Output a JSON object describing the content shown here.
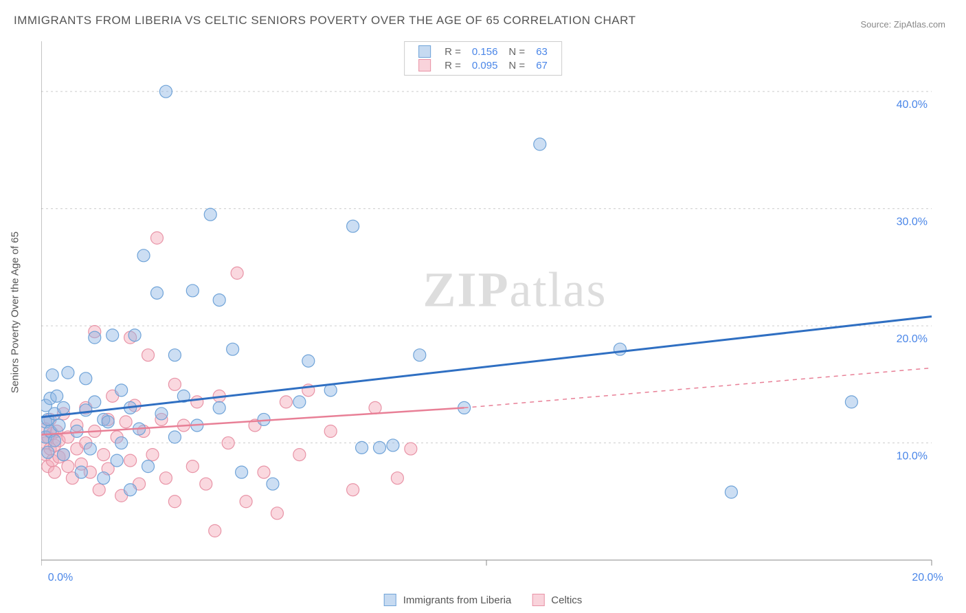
{
  "title": "IMMIGRANTS FROM LIBERIA VS CELTIC SENIORS POVERTY OVER THE AGE OF 65 CORRELATION CHART",
  "source": "Source: ZipAtlas.com",
  "ylabel": "Seniors Poverty Over the Age of 65",
  "watermark": {
    "bold": "ZIP",
    "rest": "atlas"
  },
  "chart": {
    "type": "scatter",
    "xlim": [
      0,
      20
    ],
    "ylim": [
      0,
      44
    ],
    "x_ticks": [
      0,
      10,
      20
    ],
    "x_tick_labels": [
      "0.0%",
      "",
      "20.0%"
    ],
    "y_gridlines": [
      10,
      20,
      30,
      40
    ],
    "y_tick_labels": [
      "10.0%",
      "20.0%",
      "30.0%",
      "40.0%"
    ],
    "background_color": "#ffffff",
    "grid_color": "#cccccc",
    "axis_color": "#888888",
    "tick_label_color": "#4a86e8",
    "marker_radius": 9,
    "marker_stroke_width": 1.2,
    "series": [
      {
        "name": "Immigrants from Liberia",
        "fill": "rgba(141,182,228,0.45)",
        "stroke": "#6fa3d8",
        "line_color": "#2f6fc2",
        "line_width": 3,
        "trend_line": {
          "x1": 0,
          "y1": 12.2,
          "x2": 20,
          "y2": 20.8
        },
        "R": "0.156",
        "N": "63",
        "points": [
          [
            0.1,
            10.5
          ],
          [
            0.1,
            11.8
          ],
          [
            0.1,
            13.2
          ],
          [
            0.15,
            9.2
          ],
          [
            0.15,
            12.0
          ],
          [
            0.2,
            13.8
          ],
          [
            0.2,
            11.0
          ],
          [
            0.25,
            15.8
          ],
          [
            0.3,
            10.2
          ],
          [
            0.3,
            12.5
          ],
          [
            0.35,
            14.0
          ],
          [
            0.4,
            11.5
          ],
          [
            0.5,
            9.0
          ],
          [
            0.5,
            13.0
          ],
          [
            0.6,
            16.0
          ],
          [
            0.8,
            11.0
          ],
          [
            0.9,
            7.5
          ],
          [
            1.0,
            15.5
          ],
          [
            1.0,
            12.8
          ],
          [
            1.1,
            9.5
          ],
          [
            1.2,
            19.0
          ],
          [
            1.2,
            13.5
          ],
          [
            1.4,
            12.0
          ],
          [
            1.4,
            7.0
          ],
          [
            1.5,
            11.8
          ],
          [
            1.6,
            19.2
          ],
          [
            1.7,
            8.5
          ],
          [
            1.8,
            10.0
          ],
          [
            1.8,
            14.5
          ],
          [
            2.0,
            13.0
          ],
          [
            2.0,
            6.0
          ],
          [
            2.1,
            19.2
          ],
          [
            2.2,
            11.2
          ],
          [
            2.3,
            26.0
          ],
          [
            2.4,
            8.0
          ],
          [
            2.6,
            22.8
          ],
          [
            2.7,
            12.5
          ],
          [
            2.8,
            40.0
          ],
          [
            3.0,
            17.5
          ],
          [
            3.0,
            10.5
          ],
          [
            3.2,
            14.0
          ],
          [
            3.4,
            23.0
          ],
          [
            3.5,
            11.5
          ],
          [
            3.8,
            29.5
          ],
          [
            4.0,
            13.0
          ],
          [
            4.0,
            22.2
          ],
          [
            4.3,
            18.0
          ],
          [
            4.5,
            7.5
          ],
          [
            5.0,
            12.0
          ],
          [
            5.2,
            6.5
          ],
          [
            5.8,
            13.5
          ],
          [
            6.0,
            17.0
          ],
          [
            6.5,
            14.5
          ],
          [
            7.0,
            28.5
          ],
          [
            7.2,
            9.6
          ],
          [
            7.6,
            9.6
          ],
          [
            7.9,
            9.8
          ],
          [
            8.5,
            17.5
          ],
          [
            9.5,
            13.0
          ],
          [
            11.2,
            35.5
          ],
          [
            13.0,
            18.0
          ],
          [
            15.5,
            5.8
          ],
          [
            18.2,
            13.5
          ]
        ]
      },
      {
        "name": "Celtics",
        "fill": "rgba(244,168,184,0.45)",
        "stroke": "#e893a6",
        "line_color": "#e87f96",
        "line_width": 2.5,
        "trend_line": {
          "x1": 0,
          "y1": 10.7,
          "x2": 9.5,
          "y2": 13.0
        },
        "trend_dash": {
          "x1": 9.5,
          "y1": 13.0,
          "x2": 20,
          "y2": 16.4
        },
        "R": "0.095",
        "N": "67",
        "points": [
          [
            0.1,
            9.0
          ],
          [
            0.1,
            10.0
          ],
          [
            0.1,
            11.2
          ],
          [
            0.15,
            8.0
          ],
          [
            0.15,
            10.5
          ],
          [
            0.2,
            9.5
          ],
          [
            0.2,
            12.0
          ],
          [
            0.25,
            8.5
          ],
          [
            0.25,
            10.8
          ],
          [
            0.3,
            9.8
          ],
          [
            0.3,
            7.5
          ],
          [
            0.35,
            11.0
          ],
          [
            0.4,
            8.8
          ],
          [
            0.4,
            10.2
          ],
          [
            0.5,
            9.0
          ],
          [
            0.5,
            12.5
          ],
          [
            0.6,
            8.0
          ],
          [
            0.6,
            10.5
          ],
          [
            0.7,
            7.0
          ],
          [
            0.8,
            9.5
          ],
          [
            0.8,
            11.5
          ],
          [
            0.9,
            8.2
          ],
          [
            1.0,
            10.0
          ],
          [
            1.0,
            13.0
          ],
          [
            1.1,
            7.5
          ],
          [
            1.2,
            19.5
          ],
          [
            1.2,
            11.0
          ],
          [
            1.3,
            6.0
          ],
          [
            1.4,
            9.0
          ],
          [
            1.5,
            12.0
          ],
          [
            1.5,
            7.8
          ],
          [
            1.6,
            14.0
          ],
          [
            1.7,
            10.5
          ],
          [
            1.8,
            5.5
          ],
          [
            1.9,
            11.8
          ],
          [
            2.0,
            19.0
          ],
          [
            2.0,
            8.5
          ],
          [
            2.1,
            13.2
          ],
          [
            2.2,
            6.5
          ],
          [
            2.3,
            11.0
          ],
          [
            2.4,
            17.5
          ],
          [
            2.5,
            9.0
          ],
          [
            2.6,
            27.5
          ],
          [
            2.7,
            12.0
          ],
          [
            2.8,
            7.0
          ],
          [
            3.0,
            15.0
          ],
          [
            3.0,
            5.0
          ],
          [
            3.2,
            11.5
          ],
          [
            3.4,
            8.0
          ],
          [
            3.5,
            13.5
          ],
          [
            3.7,
            6.5
          ],
          [
            3.9,
            2.5
          ],
          [
            4.0,
            14.0
          ],
          [
            4.2,
            10.0
          ],
          [
            4.4,
            24.5
          ],
          [
            4.6,
            5.0
          ],
          [
            4.8,
            11.5
          ],
          [
            5.0,
            7.5
          ],
          [
            5.3,
            4.0
          ],
          [
            5.5,
            13.5
          ],
          [
            5.8,
            9.0
          ],
          [
            6.0,
            14.5
          ],
          [
            6.5,
            11.0
          ],
          [
            7.0,
            6.0
          ],
          [
            7.5,
            13.0
          ],
          [
            8.0,
            7.0
          ],
          [
            8.3,
            9.5
          ]
        ]
      }
    ]
  },
  "legend_top": {
    "rows": [
      {
        "swatch_fill": "rgba(141,182,228,0.5)",
        "swatch_stroke": "#6fa3d8",
        "r_label": "R =",
        "r_val": "0.156",
        "n_label": "N =",
        "n_val": "63"
      },
      {
        "swatch_fill": "rgba(244,168,184,0.5)",
        "swatch_stroke": "#e893a6",
        "r_label": "R =",
        "r_val": "0.095",
        "n_label": "N =",
        "n_val": "67"
      }
    ]
  },
  "legend_bottom": {
    "items": [
      {
        "swatch_fill": "rgba(141,182,228,0.5)",
        "swatch_stroke": "#6fa3d8",
        "label": "Immigrants from Liberia"
      },
      {
        "swatch_fill": "rgba(244,168,184,0.5)",
        "swatch_stroke": "#e893a6",
        "label": "Celtics"
      }
    ]
  }
}
